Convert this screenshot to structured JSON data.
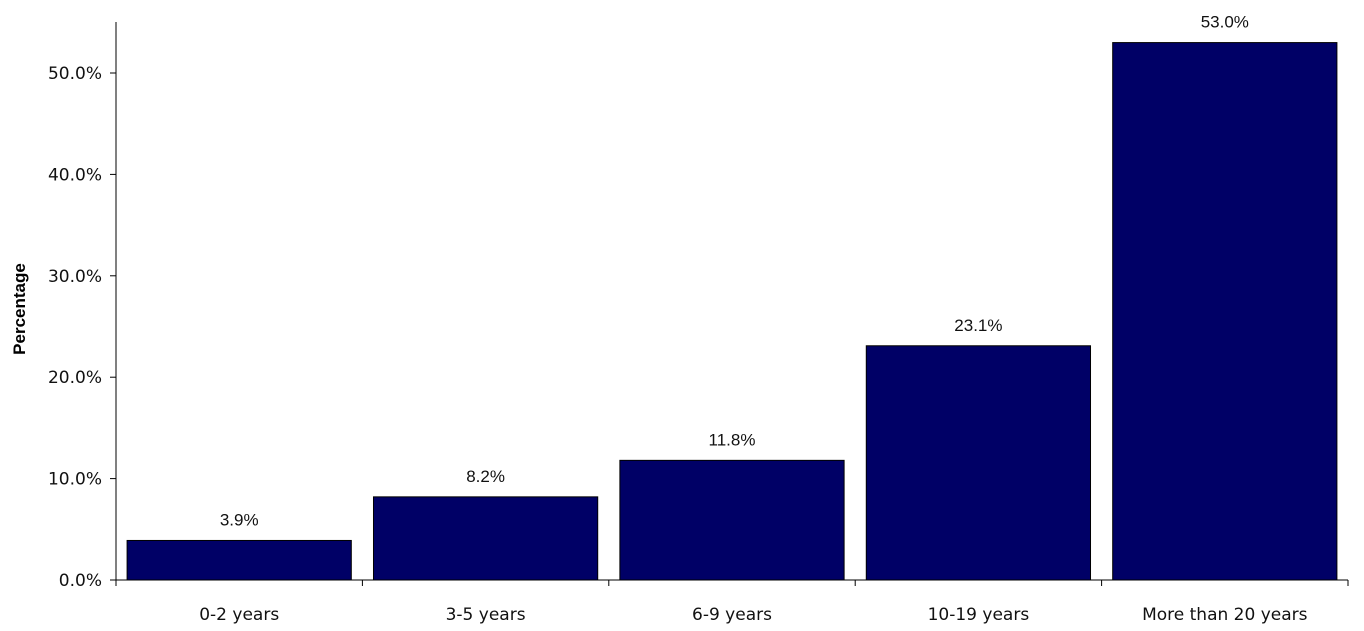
{
  "chart_data": {
    "type": "bar",
    "title": "",
    "xlabel": "",
    "ylabel": "Percentage",
    "categories": [
      "0-2 years",
      "3-5 years",
      "6-9 years",
      "10-19 years",
      "More than 20 years"
    ],
    "values": [
      3.9,
      8.2,
      11.8,
      23.1,
      53.0
    ],
    "value_labels": [
      "3.9%",
      "8.2%",
      "11.8%",
      "23.1%",
      "53.0%"
    ],
    "ylim": [
      0,
      55
    ],
    "yticks": [
      0,
      10,
      20,
      30,
      40,
      50
    ],
    "ytick_labels": [
      "0.0%",
      "10.0%",
      "20.0%",
      "30.0%",
      "40.0%",
      "50.0%"
    ],
    "grid": false,
    "legend": "none",
    "bar_color": "#000066"
  }
}
